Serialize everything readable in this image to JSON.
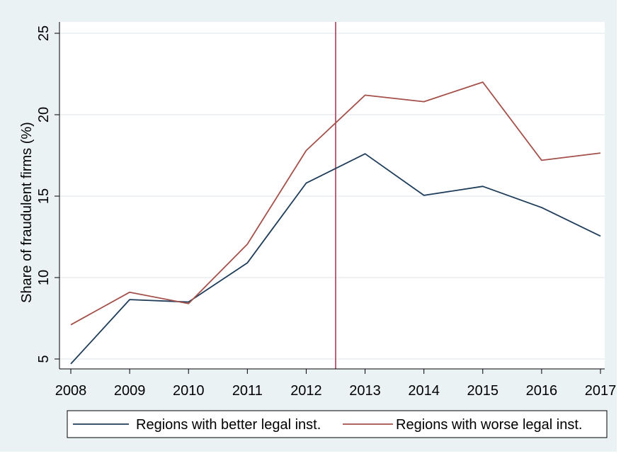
{
  "chart_data": {
    "type": "line",
    "title": "",
    "xlabel": "",
    "ylabel": "Share of fraudulent firms (%)",
    "x": [
      2008,
      2009,
      2010,
      2011,
      2012,
      2013,
      2014,
      2015,
      2016,
      2017
    ],
    "xticks": [
      "2008",
      "2009",
      "2010",
      "2011",
      "2012",
      "2013",
      "2014",
      "2015",
      "2016",
      "2017"
    ],
    "yticks": [
      "5",
      "10",
      "15",
      "20",
      "25"
    ],
    "ylim": [
      5,
      25
    ],
    "grid": true,
    "vline": {
      "x": 2012.5,
      "color": "#a3314f"
    },
    "series": [
      {
        "name": "Regions with better legal inst.",
        "color": "#1f3d5a",
        "values": [
          4.7,
          8.65,
          8.5,
          10.9,
          15.8,
          17.6,
          15.05,
          15.6,
          14.3,
          12.55
        ]
      },
      {
        "name": "Regions with worse legal inst.",
        "color": "#a3514a",
        "values": [
          7.1,
          9.1,
          8.4,
          12.05,
          17.8,
          21.2,
          20.8,
          22.0,
          17.2,
          17.65
        ]
      }
    ],
    "legend": {
      "position": "bottom"
    },
    "colors": {
      "background": "#eaf2f3",
      "plot": "#ffffff",
      "grid": "#e9eef0",
      "axis": "#000000"
    }
  }
}
